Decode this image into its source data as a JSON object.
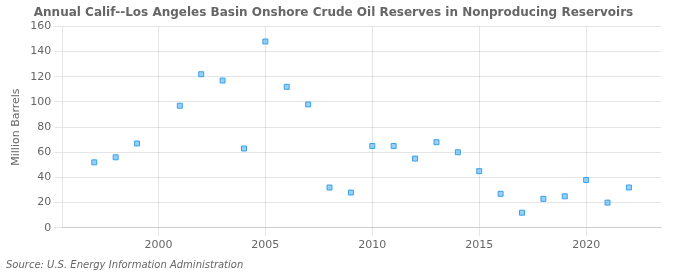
{
  "chart_data": {
    "type": "scatter",
    "title": "Annual Calif--Los Angeles Basin Onshore Crude Oil Reserves in Nonproducing Reservoirs",
    "ylabel": "Million Barrels",
    "annotation": "Source: U.S. Energy Information Administration",
    "x": [
      1997,
      1998,
      1999,
      2001,
      2002,
      2003,
      2004,
      2005,
      2006,
      2007,
      2008,
      2009,
      2010,
      2011,
      2012,
      2013,
      2014,
      2015,
      2016,
      2017,
      2018,
      2019,
      2020,
      2021,
      2022
    ],
    "values": [
      52,
      56,
      67,
      97,
      122,
      117,
      63,
      148,
      112,
      98,
      32,
      28,
      65,
      65,
      55,
      68,
      60,
      45,
      27,
      12,
      23,
      25,
      38,
      20,
      32
    ],
    "marker": "square",
    "xlim": [
      1995.5,
      2023.5
    ],
    "xticks": [
      2000,
      2005,
      2010,
      2015,
      2020
    ],
    "ylim": [
      0,
      160
    ],
    "yticks": [
      0,
      20,
      40,
      60,
      80,
      100,
      120,
      140,
      160
    ],
    "grid": true
  }
}
